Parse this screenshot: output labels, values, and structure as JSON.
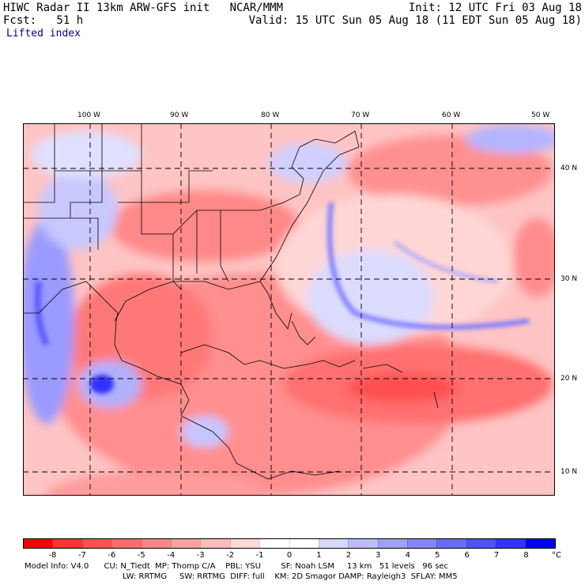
{
  "header": {
    "line1_left": "HIWC Radar II 13km ARW-GFS init   NCAR/MMM",
    "line1_right": "Init: 12 UTC Fri 03 Aug 18",
    "line2_left": "Fcst:   51 h",
    "line2_right": "Valid: 15 UTC Sun 05 Aug 18 (11 EDT Sun 05 Aug 18)",
    "field": "Lifted index"
  },
  "map": {
    "lon_labels": [
      "100 W",
      "90 W",
      "80 W",
      "70 W",
      "60 W",
      "50 W"
    ],
    "lat_labels": [
      "40 N",
      "30 N",
      "20 N",
      "10 N"
    ]
  },
  "colorbar": {
    "unit": "°C",
    "labels": [
      "-8",
      "-7",
      "-6",
      "-5",
      "-4",
      "-3",
      "-2",
      "-1",
      "0",
      "1",
      "2",
      "3",
      "4",
      "5",
      "6",
      "7",
      "8"
    ],
    "colors": [
      "#ff0000",
      "#ff3333",
      "#ff5050",
      "#ff6a6a",
      "#ff8585",
      "#ffa0a0",
      "#ffbcbc",
      "#ffd8d8",
      "#ffffff",
      "#ffffff",
      "#d8d8ff",
      "#bcbcff",
      "#a0a0ff",
      "#8585ff",
      "#6a6aff",
      "#5050ff",
      "#3333ff",
      "#0000ff"
    ]
  },
  "footer": {
    "line1": "Model Info: V4.0      CU: N_Tiedt  MP: Thomp C/A    PBL: YSU        SF: Noah LSM     13 km   51 levels   96 sec",
    "line2": "LW: RRTMG     SW: RRTMG  DIFF: full    KM: 2D Smagor DAMP: Rayleigh3  SFLAY: MM5"
  },
  "colors": {
    "unstable": "#ff6a6a",
    "stable": "#6a6aff",
    "neutral": "#ffd8d8"
  }
}
